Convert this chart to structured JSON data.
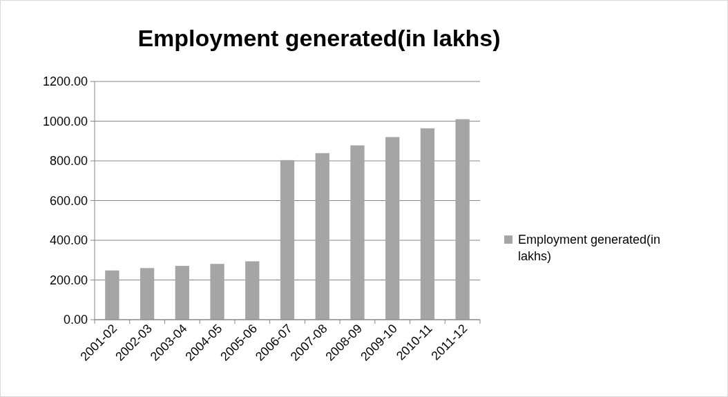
{
  "chart_data": {
    "type": "bar",
    "title": "Employment generated(in lakhs)",
    "categories": [
      "2001-02",
      "2002-03",
      "2003-04",
      "2004-05",
      "2005-06",
      "2006-07",
      "2007-08",
      "2008-09",
      "2009-10",
      "2010-11",
      "2011-12"
    ],
    "series": [
      {
        "name": "Employment generated(in lakhs)",
        "color": "#a5a5a5",
        "values": [
          248,
          260,
          271,
          281,
          294,
          804,
          839,
          878,
          920,
          964,
          1010
        ]
      }
    ],
    "ylim": [
      0,
      1200
    ],
    "yticks": [
      {
        "value": 0,
        "label": "0.00"
      },
      {
        "value": 200,
        "label": "200.00"
      },
      {
        "value": 400,
        "label": "400.00"
      },
      {
        "value": 600,
        "label": "600.00"
      },
      {
        "value": 800,
        "label": "800.00"
      },
      {
        "value": 1000,
        "label": "1000.00"
      },
      {
        "value": 1200,
        "label": "1200.00"
      }
    ],
    "grid": "y",
    "legend": "right"
  }
}
